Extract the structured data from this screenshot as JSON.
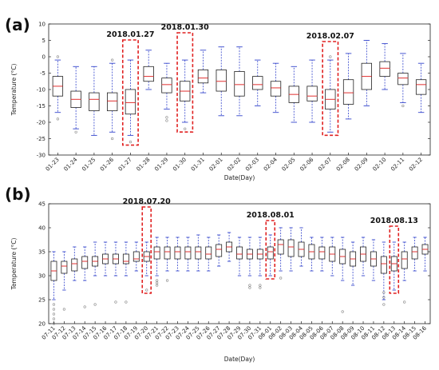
{
  "chart_data": [
    {
      "type": "box",
      "panel_label": "(a)",
      "xlabel": "Date(Day)",
      "ylabel": "Temperature (°C)",
      "ylim": [
        -30,
        10
      ],
      "yticks": [
        -30,
        -25,
        -20,
        -15,
        -10,
        -5,
        0,
        5,
        10
      ],
      "grid": false,
      "categories": [
        "01-23",
        "01-24",
        "01-25",
        "01-26",
        "01-27",
        "01-28",
        "01-29",
        "01-30",
        "01-31",
        "02-01",
        "02-02",
        "02-03",
        "02-04",
        "02-05",
        "02-06",
        "02-07",
        "02-08",
        "02-09",
        "02-10",
        "02-11",
        "02-12"
      ],
      "boxes": [
        {
          "whislo": -17,
          "q1": -12,
          "med": -9,
          "q3": -6,
          "whishi": -1,
          "fliers": [
            -19,
            0
          ]
        },
        {
          "whislo": -22,
          "q1": -15.5,
          "med": -13,
          "q3": -10.5,
          "whishi": -3,
          "fliers": [
            -23
          ]
        },
        {
          "whislo": -24,
          "q1": -16.5,
          "med": -13,
          "q3": -11,
          "whishi": -3,
          "fliers": []
        },
        {
          "whislo": -23,
          "q1": -16.5,
          "med": -13.5,
          "q3": -11,
          "whishi": -2,
          "fliers": [
            -25,
            -1
          ]
        },
        {
          "whislo": -24,
          "q1": -17.5,
          "med": -14,
          "q3": -10,
          "whishi": -1,
          "fliers": [
            -26
          ]
        },
        {
          "whislo": -10,
          "q1": -7.5,
          "med": -6,
          "q3": -3,
          "whishi": 2,
          "fliers": []
        },
        {
          "whislo": -16,
          "q1": -11,
          "med": -8.5,
          "q3": -6.5,
          "whishi": -2,
          "fliers": [
            -18.5,
            -19.5
          ]
        },
        {
          "whislo": -20,
          "q1": -13.5,
          "med": -10.5,
          "q3": -7.5,
          "whishi": -1,
          "fliers": [
            -22
          ]
        },
        {
          "whislo": -11,
          "q1": -8,
          "med": -6.5,
          "q3": -4,
          "whishi": 2,
          "fliers": []
        },
        {
          "whislo": -18,
          "q1": -10.5,
          "med": -7.5,
          "q3": -4,
          "whishi": 3,
          "fliers": []
        },
        {
          "whislo": -18,
          "q1": -12,
          "med": -8.5,
          "q3": -4.5,
          "whishi": 3,
          "fliers": []
        },
        {
          "whislo": -15,
          "q1": -10,
          "med": -8.5,
          "q3": -6,
          "whishi": -1,
          "fliers": []
        },
        {
          "whislo": -17,
          "q1": -12,
          "med": -9.5,
          "q3": -7.5,
          "whishi": -2,
          "fliers": []
        },
        {
          "whislo": -20,
          "q1": -14,
          "med": -11.5,
          "q3": -9,
          "whishi": -3,
          "fliers": []
        },
        {
          "whislo": -20,
          "q1": -13.5,
          "med": -12,
          "q3": -9,
          "whishi": -1,
          "fliers": []
        },
        {
          "whislo": -23,
          "q1": -16,
          "med": -13,
          "q3": -10,
          "whishi": -1,
          "fliers": [
            0
          ]
        },
        {
          "whislo": -19,
          "q1": -14.5,
          "med": -11,
          "q3": -7,
          "whishi": 1,
          "fliers": []
        },
        {
          "whislo": -15,
          "q1": -10,
          "med": -6,
          "q3": -2,
          "whishi": 5,
          "fliers": []
        },
        {
          "whislo": -10,
          "q1": -6,
          "med": -3.5,
          "q3": -1.5,
          "whishi": 4,
          "fliers": []
        },
        {
          "whislo": -14,
          "q1": -8.5,
          "med": -6.5,
          "q3": -5,
          "whishi": 1,
          "fliers": [
            -15
          ]
        },
        {
          "whislo": -17,
          "q1": -11.5,
          "med": -8.5,
          "q3": -7,
          "whishi": -2,
          "fliers": []
        }
      ],
      "highlights": [
        {
          "category": "01-27",
          "label": "2018.01.27"
        },
        {
          "category": "01-30",
          "label": "2018.01.30"
        },
        {
          "category": "02-07",
          "label": "2018.02.07"
        }
      ],
      "colors": {
        "box": "#222222",
        "median": "#e03030",
        "whisker": "#3344cc",
        "flier": "#888888",
        "highlight": "#e02020"
      }
    },
    {
      "type": "box",
      "panel_label": "(b)",
      "xlabel": "Date(Day)",
      "ylabel": "Temperature (°C)",
      "ylim": [
        20,
        45
      ],
      "yticks": [
        20,
        25,
        30,
        35,
        40,
        45
      ],
      "grid": false,
      "categories": [
        "07-11",
        "07-12",
        "07-13",
        "07-14",
        "07-15",
        "07-16",
        "07-17",
        "07-18",
        "07-19",
        "07-20",
        "07-21",
        "07-22",
        "07-23",
        "07-24",
        "07-25",
        "07-26",
        "07-27",
        "07-28",
        "07-29",
        "07-30",
        "07-31",
        "08-01",
        "08-02",
        "08-03",
        "08-04",
        "08-05",
        "08-06",
        "08-07",
        "08-08",
        "08-09",
        "08-10",
        "08-11",
        "08-12",
        "08-13",
        "08-14",
        "08-15",
        "08-16"
      ],
      "boxes": [
        {
          "whislo": 25,
          "q1": 29,
          "med": 31,
          "q3": 33,
          "whishi": 35,
          "fliers": [
            22,
            21,
            20,
            23,
            24
          ]
        },
        {
          "whislo": 27,
          "q1": 30.5,
          "med": 32,
          "q3": 33,
          "whishi": 35,
          "fliers": [
            23
          ]
        },
        {
          "whislo": 29,
          "q1": 31,
          "med": 32.5,
          "q3": 33.5,
          "whishi": 36,
          "fliers": []
        },
        {
          "whislo": 29,
          "q1": 31.5,
          "med": 33,
          "q3": 34,
          "whishi": 36,
          "fliers": [
            23.5
          ]
        },
        {
          "whislo": 30,
          "q1": 32,
          "med": 33,
          "q3": 34,
          "whishi": 37,
          "fliers": [
            24
          ]
        },
        {
          "whislo": 30,
          "q1": 32.5,
          "med": 33.5,
          "q3": 34.5,
          "whishi": 37,
          "fliers": []
        },
        {
          "whislo": 30,
          "q1": 32.5,
          "med": 33.5,
          "q3": 34.5,
          "whishi": 37,
          "fliers": [
            24.5
          ]
        },
        {
          "whislo": 30,
          "q1": 32.5,
          "med": 33,
          "q3": 34.5,
          "whishi": 37,
          "fliers": [
            24.5
          ]
        },
        {
          "whislo": 31,
          "q1": 33,
          "med": 33.5,
          "q3": 35,
          "whishi": 37,
          "fliers": []
        },
        {
          "whislo": 30,
          "q1": 33,
          "med": 34,
          "q3": 35,
          "whishi": 37,
          "fliers": [
            27
          ]
        },
        {
          "whislo": 30,
          "q1": 33.5,
          "med": 35,
          "q3": 36,
          "whishi": 38,
          "fliers": [
            28,
            28.5,
            29
          ]
        },
        {
          "whislo": 31,
          "q1": 33.5,
          "med": 35,
          "q3": 36,
          "whishi": 38,
          "fliers": [
            29
          ]
        },
        {
          "whislo": 31,
          "q1": 33.5,
          "med": 35,
          "q3": 36,
          "whishi": 38,
          "fliers": []
        },
        {
          "whislo": 31,
          "q1": 33.5,
          "med": 35,
          "q3": 36,
          "whishi": 38,
          "fliers": []
        },
        {
          "whislo": 31,
          "q1": 33.5,
          "med": 35,
          "q3": 36,
          "whishi": 38.5,
          "fliers": []
        },
        {
          "whislo": 31,
          "q1": 33.5,
          "med": 34.5,
          "q3": 36,
          "whishi": 38,
          "fliers": []
        },
        {
          "whislo": 32,
          "q1": 34,
          "med": 35.5,
          "q3": 36.5,
          "whishi": 38.5,
          "fliers": []
        },
        {
          "whislo": 33,
          "q1": 35,
          "med": 36,
          "q3": 37,
          "whishi": 39,
          "fliers": []
        },
        {
          "whislo": 30,
          "q1": 33.5,
          "med": 34.5,
          "q3": 36,
          "whishi": 38,
          "fliers": []
        },
        {
          "whislo": 30,
          "q1": 33.5,
          "med": 34.5,
          "q3": 35.5,
          "whishi": 38,
          "fliers": [
            27.5,
            28
          ]
        },
        {
          "whislo": 30,
          "q1": 33.5,
          "med": 34.5,
          "q3": 35.5,
          "whishi": 38,
          "fliers": [
            27.5,
            28
          ]
        },
        {
          "whislo": 30,
          "q1": 33.5,
          "med": 35,
          "q3": 36,
          "whishi": 38.5,
          "fliers": []
        },
        {
          "whislo": 31,
          "q1": 34.5,
          "med": 36.5,
          "q3": 37.5,
          "whishi": 40,
          "fliers": [
            29.5
          ]
        },
        {
          "whislo": 31,
          "q1": 34,
          "med": 36,
          "q3": 37.5,
          "whishi": 40,
          "fliers": []
        },
        {
          "whislo": 32,
          "q1": 34,
          "med": 35.5,
          "q3": 37,
          "whishi": 40,
          "fliers": []
        },
        {
          "whislo": 31,
          "q1": 33.5,
          "med": 35,
          "q3": 36.5,
          "whishi": 38,
          "fliers": []
        },
        {
          "whislo": 31,
          "q1": 33.5,
          "med": 35,
          "q3": 36,
          "whishi": 38,
          "fliers": []
        },
        {
          "whislo": 30,
          "q1": 33,
          "med": 34.5,
          "q3": 36,
          "whishi": 38,
          "fliers": []
        },
        {
          "whislo": 29,
          "q1": 32.5,
          "med": 34,
          "q3": 35.5,
          "whishi": 38,
          "fliers": [
            22.5
          ]
        },
        {
          "whislo": 28,
          "q1": 32,
          "med": 33.5,
          "q3": 35,
          "whishi": 37,
          "fliers": []
        },
        {
          "whislo": 30,
          "q1": 33,
          "med": 34.5,
          "q3": 36,
          "whishi": 38,
          "fliers": []
        },
        {
          "whislo": 29,
          "q1": 32,
          "med": 33.5,
          "q3": 35,
          "whishi": 37.5,
          "fliers": []
        },
        {
          "whislo": 25,
          "q1": 30.5,
          "med": 32.5,
          "q3": 34,
          "whishi": 37,
          "fliers": [
            24,
            25.5,
            26.5
          ]
        },
        {
          "whislo": 27,
          "q1": 31,
          "med": 32.5,
          "q3": 34,
          "whishi": 37,
          "fliers": []
        },
        {
          "whislo": 29,
          "q1": 31.5,
          "med": 33.5,
          "q3": 35,
          "whishi": 37,
          "fliers": [
            24.5
          ]
        },
        {
          "whislo": 31,
          "q1": 33.5,
          "med": 35,
          "q3": 36,
          "whishi": 38,
          "fliers": []
        },
        {
          "whislo": 31,
          "q1": 34.5,
          "med": 35.5,
          "q3": 36.5,
          "whishi": 38,
          "fliers": []
        }
      ],
      "highlights": [
        {
          "category": "07-20",
          "label": "2018.07.20"
        },
        {
          "category": "08-01",
          "label": "2018.08.01"
        },
        {
          "category": "08-13",
          "label": "2018.08.13"
        }
      ],
      "colors": {
        "box": "#222222",
        "median": "#e03030",
        "whisker": "#3344cc",
        "flier": "#888888",
        "highlight": "#e02020"
      }
    }
  ]
}
